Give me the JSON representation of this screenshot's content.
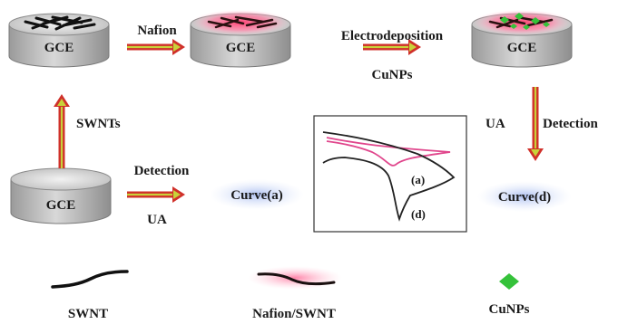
{
  "electrodes": {
    "gce_label": "GCE"
  },
  "steps": {
    "nafion": "Nafion",
    "electrodeposition": "Electrodeposition",
    "cunps": "CuNPs",
    "swnts": "SWNTs",
    "ua_right": "UA",
    "detection_right": "Detection",
    "detection_left": "Detection",
    "ua_left": "UA"
  },
  "curves": {
    "curve_a": "Curve(a)",
    "curve_d": "Curve(d)",
    "inset_a": "(a)",
    "inset_d": "(d)"
  },
  "legend": {
    "swnt": "SWNT",
    "nafion_swnt": "Nafion/SWNT",
    "cunps": "CuNPs"
  },
  "colors": {
    "arrow_red": "#d0302a",
    "arrow_green": "#c8d23a",
    "electrode_body": "#b9b9b9",
    "electrode_top": "#e2e2e2",
    "swnt_black": "#111111",
    "nafion_glow": "#ff8fb0",
    "cunps_green": "#35c23a",
    "curve_glow": "#b8c8f2",
    "cv_pink": "#e0468c",
    "cv_black": "#222222"
  }
}
